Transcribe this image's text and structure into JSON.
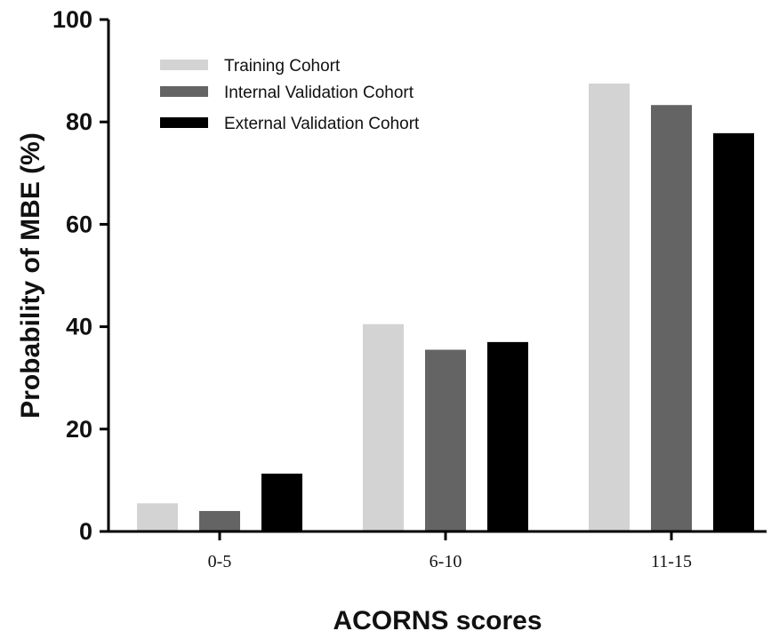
{
  "chart_data": {
    "type": "bar",
    "categories": [
      "0-5",
      "6-10",
      "11-15"
    ],
    "series": [
      {
        "name": "Training Cohort",
        "color": "#d3d3d3",
        "values": [
          5.5,
          40.5,
          87.5
        ]
      },
      {
        "name": "Internal Validation Cohort",
        "color": "#646464",
        "values": [
          4.0,
          35.5,
          83.3
        ]
      },
      {
        "name": "External Validation Cohort",
        "color": "#000000",
        "values": [
          11.3,
          37.0,
          77.8
        ]
      }
    ],
    "title": "",
    "xlabel": "ACORNS scores",
    "ylabel": "Probability of MBE (%)",
    "ylim": [
      0,
      100
    ],
    "yticks": [
      0,
      20,
      40,
      60,
      80,
      100
    ],
    "grid": false,
    "legend_position": "top-left"
  }
}
